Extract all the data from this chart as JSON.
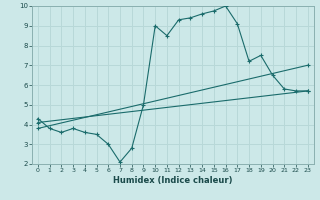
{
  "title": "",
  "xlabel": "Humidex (Indice chaleur)",
  "ylabel": "",
  "background_color": "#cce8e8",
  "grid_color": "#b8d8d8",
  "line_color": "#1a6b6b",
  "xlim": [
    -0.5,
    23.5
  ],
  "ylim": [
    2,
    10
  ],
  "xticks": [
    0,
    1,
    2,
    3,
    4,
    5,
    6,
    7,
    8,
    9,
    10,
    11,
    12,
    13,
    14,
    15,
    16,
    17,
    18,
    19,
    20,
    21,
    22,
    23
  ],
  "yticks": [
    2,
    3,
    4,
    5,
    6,
    7,
    8,
    9,
    10
  ],
  "line1_x": [
    0,
    1,
    2,
    3,
    4,
    5,
    6,
    7,
    8,
    9,
    10,
    11,
    12,
    13,
    14,
    15,
    16,
    17,
    18,
    19,
    20,
    21,
    22,
    23
  ],
  "line1_y": [
    4.3,
    3.8,
    3.6,
    3.8,
    3.6,
    3.5,
    3.0,
    2.1,
    2.8,
    5.0,
    9.0,
    8.5,
    9.3,
    9.4,
    9.6,
    9.75,
    10.0,
    9.1,
    7.2,
    7.5,
    6.5,
    5.8,
    5.7,
    5.7
  ],
  "line2_x": [
    0,
    23
  ],
  "line2_y": [
    3.8,
    7.0
  ],
  "line3_x": [
    0,
    23
  ],
  "line3_y": [
    4.1,
    5.7
  ]
}
